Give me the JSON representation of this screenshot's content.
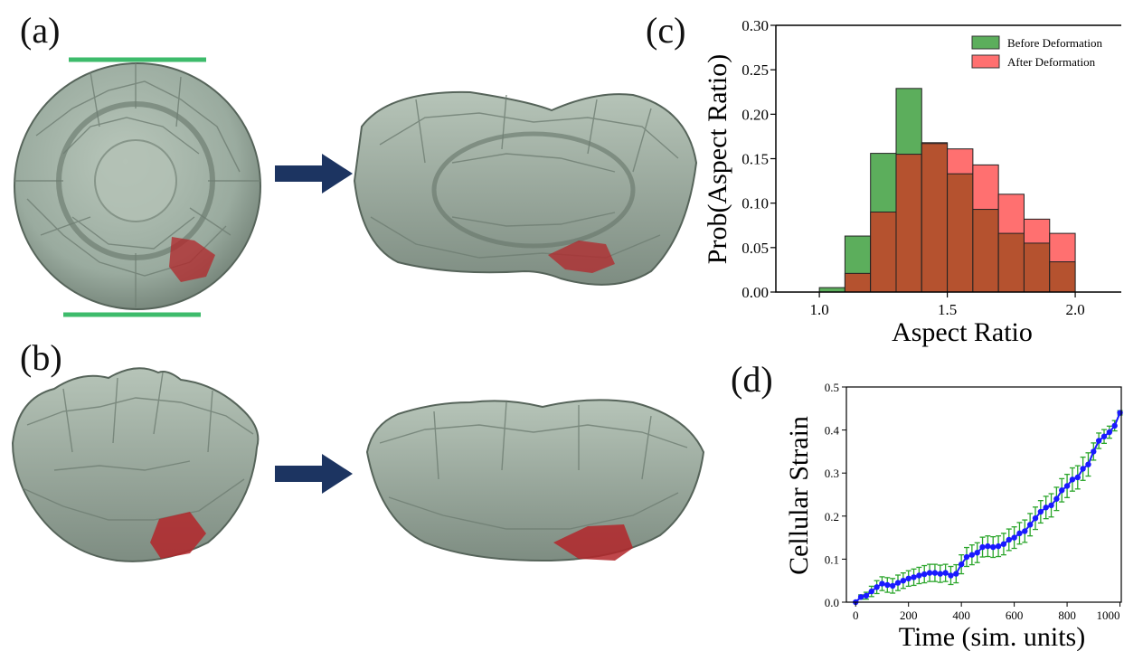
{
  "panels": {
    "a": "(a)",
    "b": "(b)",
    "c": "(c)",
    "d": "(d)"
  },
  "colors": {
    "tissue": "#9fb0a4",
    "tissue_dark": "#5f6d64",
    "cell_highlight": "#b3262a",
    "arrow": "#1c3461",
    "bar_line": "#3dbb6b",
    "before": "#5cae5c",
    "after": "#ff7070",
    "overlap": "#b5522f",
    "strain_line": "#1a1aff",
    "error_bar": "#2aa52a"
  },
  "icons": {
    "arrow_a": "right-arrow",
    "arrow_b": "right-arrow"
  },
  "chart_data": [
    {
      "type": "bar",
      "panel": "(c)",
      "xlabel": "Aspect Ratio",
      "ylabel": "Prob(Aspect Ratio)",
      "bin_edges": [
        1.0,
        1.1,
        1.2,
        1.3,
        1.4,
        1.5,
        1.6,
        1.7,
        1.8,
        1.9,
        2.0
      ],
      "series": [
        {
          "name": "Before Deformation",
          "values": [
            0.005,
            0.063,
            0.156,
            0.229,
            0.167,
            0.133,
            0.093,
            0.066,
            0.055,
            0.034
          ]
        },
        {
          "name": "After Deformation",
          "values": [
            0.0,
            0.021,
            0.09,
            0.155,
            0.168,
            0.161,
            0.143,
            0.11,
            0.082,
            0.066
          ]
        }
      ],
      "xlim": [
        0.83,
        2.18
      ],
      "ylim": [
        0,
        0.3
      ],
      "xticks": [
        "1.0",
        "1.5",
        "2.0"
      ],
      "yticks": [
        "0.00",
        "0.05",
        "0.10",
        "0.15",
        "0.20",
        "0.25",
        "0.30"
      ],
      "legend": "top-right",
      "grid": false
    },
    {
      "type": "line",
      "panel": "(d)",
      "xlabel": "Time (sim. units)",
      "ylabel": "Cellular Strain",
      "x": [
        0,
        20,
        40,
        60,
        80,
        100,
        120,
        140,
        160,
        180,
        200,
        220,
        240,
        260,
        280,
        300,
        320,
        340,
        360,
        380,
        400,
        420,
        440,
        460,
        480,
        500,
        520,
        540,
        560,
        580,
        600,
        620,
        640,
        660,
        680,
        700,
        720,
        740,
        760,
        780,
        800,
        820,
        840,
        860,
        880,
        900,
        920,
        940,
        960,
        980,
        1000
      ],
      "y": [
        0.0,
        0.012,
        0.015,
        0.025,
        0.035,
        0.043,
        0.04,
        0.038,
        0.045,
        0.05,
        0.055,
        0.058,
        0.062,
        0.065,
        0.068,
        0.068,
        0.066,
        0.068,
        0.062,
        0.066,
        0.088,
        0.105,
        0.11,
        0.115,
        0.128,
        0.13,
        0.128,
        0.13,
        0.135,
        0.145,
        0.15,
        0.16,
        0.165,
        0.18,
        0.195,
        0.21,
        0.22,
        0.225,
        0.24,
        0.26,
        0.27,
        0.285,
        0.29,
        0.31,
        0.32,
        0.35,
        0.375,
        0.385,
        0.395,
        0.41,
        0.44
      ],
      "yerr": [
        0.0,
        0.005,
        0.008,
        0.012,
        0.015,
        0.016,
        0.017,
        0.017,
        0.018,
        0.018,
        0.018,
        0.019,
        0.019,
        0.02,
        0.02,
        0.02,
        0.02,
        0.02,
        0.021,
        0.021,
        0.022,
        0.022,
        0.023,
        0.023,
        0.023,
        0.024,
        0.024,
        0.024,
        0.025,
        0.025,
        0.025,
        0.025,
        0.026,
        0.026,
        0.026,
        0.026,
        0.026,
        0.027,
        0.027,
        0.027,
        0.027,
        0.027,
        0.027,
        0.027,
        0.027,
        0.02,
        0.018,
        0.016,
        0.014,
        0.012,
        0.005
      ],
      "xlim": [
        -35,
        1005
      ],
      "ylim": [
        0,
        0.5
      ],
      "xticks": [
        "0",
        "200",
        "400",
        "600",
        "800",
        "1000"
      ],
      "yticks": [
        "0.0",
        "0.1",
        "0.2",
        "0.3",
        "0.4",
        "0.5"
      ],
      "grid": false
    }
  ]
}
